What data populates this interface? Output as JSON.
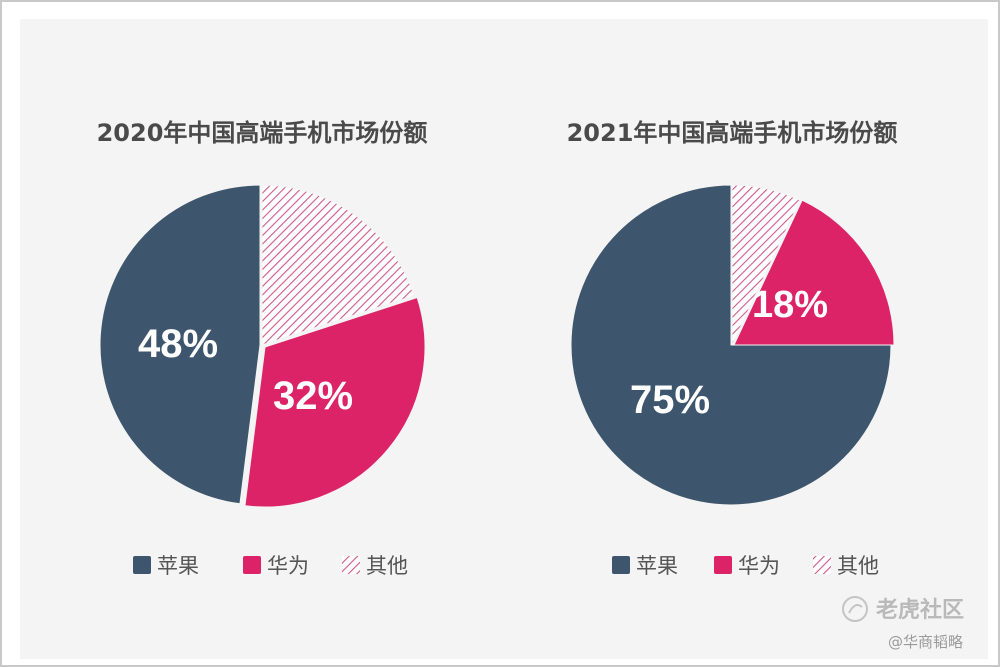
{
  "colors": {
    "apple": "#3e566d",
    "huawei": "#dc2367",
    "other": "#ce5986",
    "background": "#f4f4f4"
  },
  "watermark": {
    "primary": "老虎社区",
    "secondary": "@华商韬略",
    "icon": "tiger-logo-icon"
  },
  "chart_data": [
    {
      "type": "pie",
      "title": "2020年中国高端手机市场份额",
      "categories": [
        "苹果",
        "华为",
        "其他"
      ],
      "values": [
        48,
        32,
        20
      ],
      "data_labels": [
        "48%",
        "32%",
        ""
      ],
      "legend": [
        "苹果",
        "华为",
        "其他"
      ],
      "legend_position": "bottom",
      "colors": [
        "#3e566d",
        "#dc2367",
        "hatched"
      ]
    },
    {
      "type": "pie",
      "title": "2021年中国高端手机市场份额",
      "categories": [
        "苹果",
        "华为",
        "其他"
      ],
      "values": [
        75,
        18,
        7
      ],
      "data_labels": [
        "75%",
        "18%",
        ""
      ],
      "legend": [
        "苹果",
        "华为",
        "其他"
      ],
      "legend_position": "bottom",
      "colors": [
        "#3e566d",
        "#dc2367",
        "hatched"
      ]
    }
  ]
}
